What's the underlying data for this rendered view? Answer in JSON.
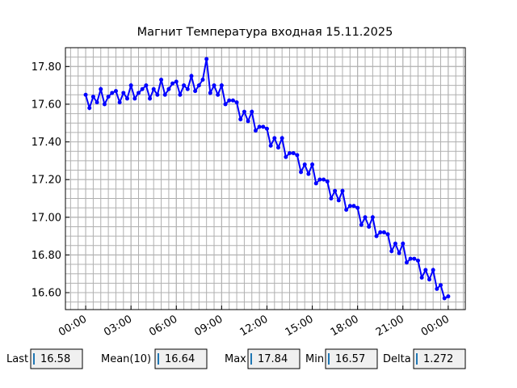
{
  "chart_data": {
    "type": "line",
    "title": "Магнит Температура входная 15.11.2025",
    "x": [
      0,
      0.25,
      0.5,
      0.75,
      1,
      1.25,
      1.5,
      1.75,
      2,
      2.25,
      2.5,
      2.75,
      3,
      3.25,
      3.5,
      3.75,
      4,
      4.25,
      4.5,
      4.75,
      5,
      5.25,
      5.5,
      5.75,
      6,
      6.25,
      6.5,
      6.75,
      7,
      7.25,
      7.5,
      7.75,
      8,
      8.25,
      8.5,
      8.75,
      9,
      9.25,
      9.5,
      9.75,
      10,
      10.25,
      10.5,
      10.75,
      11,
      11.25,
      11.5,
      11.75,
      12,
      12.25,
      12.5,
      12.75,
      13,
      13.25,
      13.5,
      13.75,
      14,
      14.25,
      14.5,
      14.75,
      15,
      15.25,
      15.5,
      15.75,
      16,
      16.25,
      16.5,
      16.75,
      17,
      17.25,
      17.5,
      17.75,
      18,
      18.25,
      18.5,
      18.75,
      19,
      19.25,
      19.5,
      19.75,
      20,
      20.25,
      20.5,
      20.75,
      21,
      21.25,
      21.5,
      21.75,
      22,
      22.25,
      22.5,
      22.75,
      23,
      23.25,
      23.5,
      23.75,
      24
    ],
    "series": [
      {
        "color": "#0000ff",
        "values": [
          17.65,
          17.58,
          17.64,
          17.61,
          17.68,
          17.6,
          17.64,
          17.66,
          17.67,
          17.61,
          17.66,
          17.63,
          17.7,
          17.63,
          17.66,
          17.68,
          17.7,
          17.63,
          17.68,
          17.65,
          17.73,
          17.65,
          17.68,
          17.71,
          17.72,
          17.65,
          17.7,
          17.68,
          17.75,
          17.67,
          17.7,
          17.73,
          17.84,
          17.66,
          17.7,
          17.65,
          17.7,
          17.6,
          17.62,
          17.62,
          17.61,
          17.52,
          17.56,
          17.51,
          17.56,
          17.46,
          17.48,
          17.48,
          17.47,
          17.38,
          17.42,
          17.37,
          17.42,
          17.32,
          17.34,
          17.34,
          17.33,
          17.24,
          17.28,
          17.23,
          17.28,
          17.18,
          17.2,
          17.2,
          17.19,
          17.1,
          17.14,
          17.09,
          17.14,
          17.04,
          17.06,
          17.06,
          17.05,
          16.96,
          17.0,
          16.95,
          17.0,
          16.9,
          16.92,
          16.92,
          16.91,
          16.82,
          16.86,
          16.81,
          16.86,
          16.76,
          16.78,
          16.78,
          16.77,
          16.68,
          16.72,
          16.67,
          16.72,
          16.62,
          16.64,
          16.57,
          16.58
        ]
      }
    ],
    "xlim": [
      -1.34,
      25.13
    ],
    "xticks": [
      {
        "value": 0,
        "label": "00:00"
      },
      {
        "value": 3,
        "label": "03:00"
      },
      {
        "value": 6,
        "label": "06:00"
      },
      {
        "value": 9,
        "label": "09:00"
      },
      {
        "value": 12,
        "label": "12:00"
      },
      {
        "value": 15,
        "label": "15:00"
      },
      {
        "value": 18,
        "label": "18:00"
      },
      {
        "value": 21,
        "label": "21:00"
      },
      {
        "value": 24,
        "label": "00:00"
      }
    ],
    "ylim": [
      16.51,
      17.9
    ],
    "yticks": [
      {
        "value": 16.6,
        "label": "16.60"
      },
      {
        "value": 16.8,
        "label": "16.80"
      },
      {
        "value": 17.0,
        "label": "17.00"
      },
      {
        "value": 17.2,
        "label": "17.20"
      },
      {
        "value": 17.4,
        "label": "17.40"
      },
      {
        "value": 17.6,
        "label": "17.60"
      },
      {
        "value": 17.8,
        "label": "17.80"
      }
    ],
    "grid": true
  },
  "stats": [
    {
      "label": "Last",
      "value": "16.58"
    },
    {
      "label": "Mean(10)",
      "value": "16.64"
    },
    {
      "label": "Max",
      "value": "17.84"
    },
    {
      "label": "Min",
      "value": "16.57"
    },
    {
      "label": "Delta",
      "value": "1.272"
    }
  ]
}
